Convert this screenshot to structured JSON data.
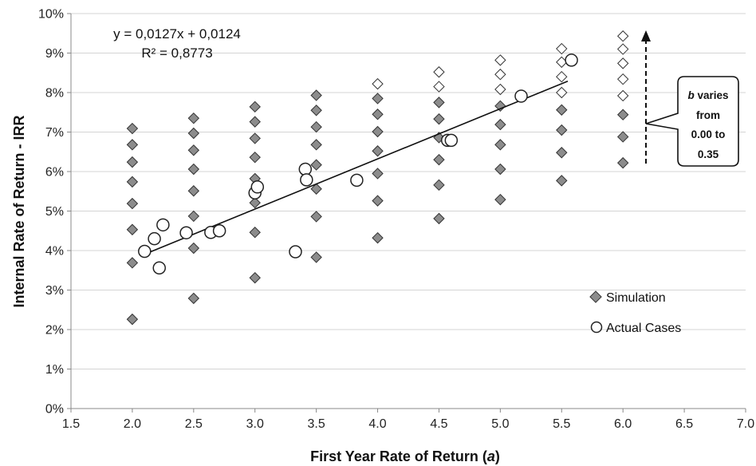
{
  "chart_data": {
    "type": "scatter",
    "xlabel_main": "First Year Rate of Return (",
    "xlabel_symbol": "a",
    "xlabel_close": ")",
    "ylabel": "Internal Rate of Return - IRR",
    "xlim": [
      1.5,
      7.0
    ],
    "ylim": [
      0,
      0.1
    ],
    "x_ticks": [
      "1.5",
      "2.0",
      "2.5",
      "3.0",
      "3.5",
      "4.0",
      "4.5",
      "5.0",
      "5.5",
      "6.0",
      "6.5",
      "7.0"
    ],
    "x_tick_values": [
      1.5,
      2.0,
      2.5,
      3.0,
      3.5,
      4.0,
      4.5,
      5.0,
      5.5,
      6.0,
      6.5,
      7.0
    ],
    "y_ticks": [
      "0%",
      "1%",
      "2%",
      "3%",
      "4%",
      "5%",
      "6%",
      "7%",
      "8%",
      "9%",
      "10%"
    ],
    "y_tick_values": [
      0,
      0.01,
      0.02,
      0.03,
      0.04,
      0.05,
      0.06,
      0.07,
      0.08,
      0.09,
      0.1
    ],
    "grid": "horizontal",
    "legend_position": "bottom-right",
    "equation": "y = 0,0127x + 0,0124",
    "r_squared": "R² = 0,8773",
    "trendline": {
      "slope": 0.0127,
      "intercept": 0.0124,
      "x_range": [
        2.1,
        5.55
      ]
    },
    "callout_b": "b",
    "callout_line1": " varies",
    "callout_line2": "from",
    "callout_line3": "0.00 to",
    "callout_line4": "0.35",
    "series": [
      {
        "name": "Simulation",
        "marker": "diamond",
        "color": "#8c8c8c",
        "points": [
          [
            2.0,
            0.0226
          ],
          [
            2.0,
            0.0369
          ],
          [
            2.0,
            0.0453
          ],
          [
            2.0,
            0.0519
          ],
          [
            2.0,
            0.0574
          ],
          [
            2.0,
            0.0624
          ],
          [
            2.0,
            0.0668
          ],
          [
            2.0,
            0.0709
          ],
          [
            2.5,
            0.0279
          ],
          [
            2.5,
            0.0406
          ],
          [
            2.5,
            0.0487
          ],
          [
            2.5,
            0.0551
          ],
          [
            2.5,
            0.0606
          ],
          [
            2.5,
            0.0654
          ],
          [
            2.5,
            0.0697
          ],
          [
            2.5,
            0.0735
          ],
          [
            3.0,
            0.0331
          ],
          [
            3.0,
            0.0446
          ],
          [
            3.0,
            0.0521
          ],
          [
            3.0,
            0.0582
          ],
          [
            3.0,
            0.0636
          ],
          [
            3.0,
            0.0684
          ],
          [
            3.0,
            0.0726
          ],
          [
            3.0,
            0.0764
          ],
          [
            3.5,
            0.0383
          ],
          [
            3.5,
            0.0486
          ],
          [
            3.5,
            0.0556
          ],
          [
            3.5,
            0.0617
          ],
          [
            3.5,
            0.0668
          ],
          [
            3.5,
            0.0713
          ],
          [
            3.5,
            0.0755
          ],
          [
            3.5,
            0.0793
          ],
          [
            4.0,
            0.0432
          ],
          [
            4.0,
            0.0526
          ],
          [
            4.0,
            0.0595
          ],
          [
            4.0,
            0.0652
          ],
          [
            4.0,
            0.0701
          ],
          [
            4.0,
            0.0745
          ],
          [
            4.0,
            0.0785
          ],
          [
            4.0,
            0.0822
          ],
          [
            4.5,
            0.0481
          ],
          [
            4.5,
            0.0566
          ],
          [
            4.5,
            0.063
          ],
          [
            4.5,
            0.0686
          ],
          [
            4.5,
            0.0733
          ],
          [
            4.5,
            0.0775
          ],
          [
            4.5,
            0.0815
          ],
          [
            4.5,
            0.0852
          ],
          [
            5.0,
            0.0529
          ],
          [
            5.0,
            0.0606
          ],
          [
            5.0,
            0.0668
          ],
          [
            5.0,
            0.0719
          ],
          [
            5.0,
            0.0766
          ],
          [
            5.0,
            0.0808
          ],
          [
            5.0,
            0.0846
          ],
          [
            5.0,
            0.0882
          ],
          [
            5.5,
            0.0577
          ],
          [
            5.5,
            0.0648
          ],
          [
            5.5,
            0.0705
          ],
          [
            5.5,
            0.0756
          ],
          [
            5.5,
            0.08
          ],
          [
            5.5,
            0.084
          ],
          [
            5.5,
            0.0877
          ],
          [
            5.5,
            0.0911
          ],
          [
            6.0,
            0.0622
          ],
          [
            6.0,
            0.0688
          ],
          [
            6.0,
            0.0744
          ],
          [
            6.0,
            0.0792
          ],
          [
            6.0,
            0.0834
          ],
          [
            6.0,
            0.0874
          ],
          [
            6.0,
            0.091
          ],
          [
            6.0,
            0.0943
          ]
        ]
      },
      {
        "name": "Actual Cases",
        "marker": "circle",
        "color": "#ffffff",
        "points": [
          [
            2.1,
            0.0398
          ],
          [
            2.18,
            0.043
          ],
          [
            2.22,
            0.0356
          ],
          [
            2.25,
            0.0465
          ],
          [
            2.44,
            0.0445
          ],
          [
            2.64,
            0.0446
          ],
          [
            2.71,
            0.045
          ],
          [
            3.0,
            0.0546
          ],
          [
            3.02,
            0.0561
          ],
          [
            3.33,
            0.0397
          ],
          [
            3.41,
            0.0606
          ],
          [
            3.42,
            0.0579
          ],
          [
            3.83,
            0.0578
          ],
          [
            4.57,
            0.0679
          ],
          [
            4.6,
            0.0679
          ],
          [
            5.17,
            0.0791
          ],
          [
            5.58,
            0.0882
          ]
        ]
      }
    ]
  }
}
